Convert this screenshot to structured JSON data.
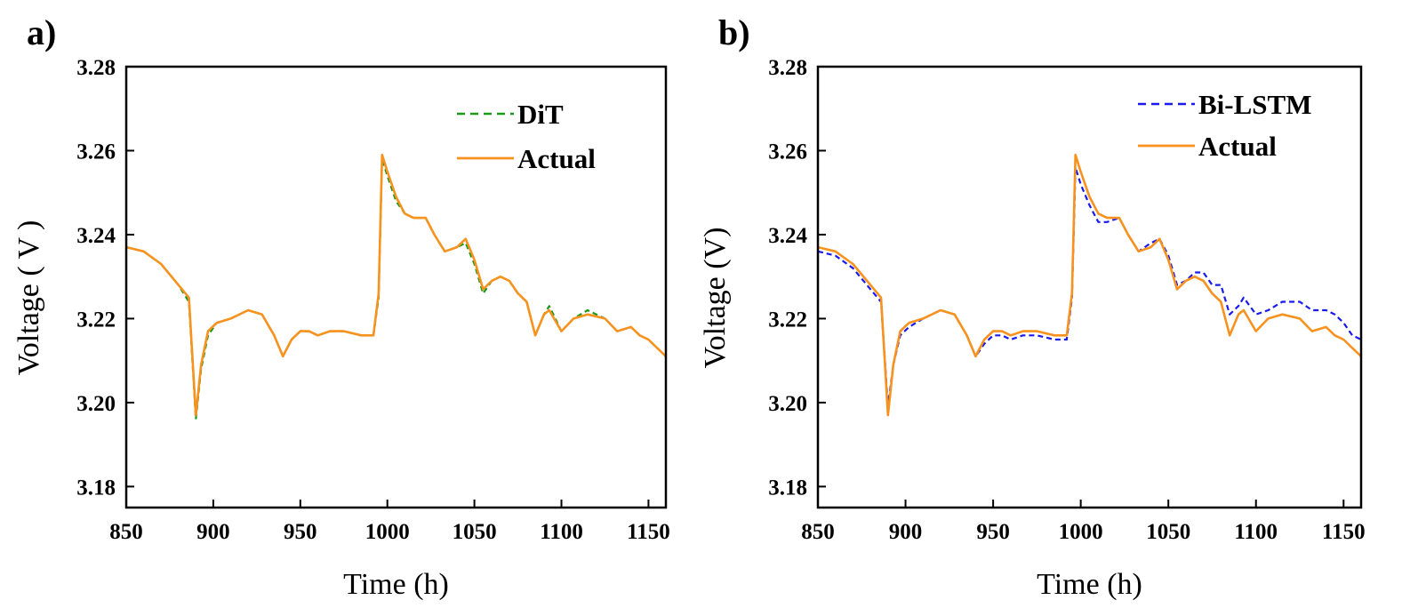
{
  "chart_data": [
    {
      "type": "line",
      "panel_label": "a)",
      "xlabel": "Time (h)",
      "ylabel": "Voltage ( V )",
      "xlim": [
        850,
        1160
      ],
      "ylim": [
        3.175,
        3.28
      ],
      "xticks": [
        "850",
        "900",
        "950",
        "1000",
        "1050",
        "1100",
        "1150"
      ],
      "yticks": [
        "3.18",
        "3.20",
        "3.22",
        "3.24",
        "3.26",
        "3.28"
      ],
      "legend_position": "top-right",
      "series": [
        {
          "name": "DiT",
          "style": "dashed",
          "color": "#1a9a1a",
          "points": [
            [
              850,
              3.237
            ],
            [
              860,
              3.236
            ],
            [
              870,
              3.233
            ],
            [
              880,
              3.228
            ],
            [
              886,
              3.224
            ],
            [
              890,
              3.196
            ],
            [
              893,
              3.208
            ],
            [
              897,
              3.216
            ],
            [
              902,
              3.219
            ],
            [
              910,
              3.22
            ],
            [
              920,
              3.222
            ],
            [
              928,
              3.221
            ],
            [
              935,
              3.216
            ],
            [
              940,
              3.211
            ],
            [
              945,
              3.215
            ],
            [
              950,
              3.217
            ],
            [
              955,
              3.217
            ],
            [
              960,
              3.216
            ],
            [
              967,
              3.217
            ],
            [
              975,
              3.217
            ],
            [
              985,
              3.216
            ],
            [
              990,
              3.216
            ],
            [
              992,
              3.216
            ],
            [
              995,
              3.225
            ],
            [
              997,
              3.258
            ],
            [
              1000,
              3.254
            ],
            [
              1005,
              3.248
            ],
            [
              1010,
              3.245
            ],
            [
              1015,
              3.244
            ],
            [
              1022,
              3.244
            ],
            [
              1027,
              3.24
            ],
            [
              1033,
              3.236
            ],
            [
              1040,
              3.237
            ],
            [
              1045,
              3.238
            ],
            [
              1050,
              3.233
            ],
            [
              1055,
              3.226
            ],
            [
              1060,
              3.229
            ],
            [
              1065,
              3.23
            ],
            [
              1070,
              3.229
            ],
            [
              1075,
              3.226
            ],
            [
              1080,
              3.224
            ],
            [
              1085,
              3.216
            ],
            [
              1090,
              3.221
            ],
            [
              1093,
              3.223
            ],
            [
              1100,
              3.217
            ],
            [
              1107,
              3.22
            ],
            [
              1115,
              3.222
            ],
            [
              1125,
              3.22
            ],
            [
              1132,
              3.217
            ],
            [
              1140,
              3.218
            ],
            [
              1145,
              3.216
            ],
            [
              1150,
              3.215
            ],
            [
              1155,
              3.213
            ],
            [
              1160,
              3.211
            ]
          ]
        },
        {
          "name": "Actual",
          "style": "solid",
          "color": "#f7921e",
          "points": [
            [
              850,
              3.237
            ],
            [
              860,
              3.236
            ],
            [
              870,
              3.233
            ],
            [
              880,
              3.228
            ],
            [
              886,
              3.225
            ],
            [
              890,
              3.197
            ],
            [
              893,
              3.209
            ],
            [
              897,
              3.217
            ],
            [
              902,
              3.219
            ],
            [
              910,
              3.22
            ],
            [
              920,
              3.222
            ],
            [
              928,
              3.221
            ],
            [
              935,
              3.216
            ],
            [
              940,
              3.211
            ],
            [
              945,
              3.215
            ],
            [
              950,
              3.217
            ],
            [
              955,
              3.217
            ],
            [
              960,
              3.216
            ],
            [
              967,
              3.217
            ],
            [
              975,
              3.217
            ],
            [
              985,
              3.216
            ],
            [
              990,
              3.216
            ],
            [
              992,
              3.216
            ],
            [
              995,
              3.226
            ],
            [
              997,
              3.259
            ],
            [
              1000,
              3.255
            ],
            [
              1005,
              3.249
            ],
            [
              1010,
              3.245
            ],
            [
              1015,
              3.244
            ],
            [
              1022,
              3.244
            ],
            [
              1027,
              3.24
            ],
            [
              1033,
              3.236
            ],
            [
              1040,
              3.237
            ],
            [
              1045,
              3.239
            ],
            [
              1050,
              3.234
            ],
            [
              1055,
              3.227
            ],
            [
              1060,
              3.229
            ],
            [
              1065,
              3.23
            ],
            [
              1070,
              3.229
            ],
            [
              1075,
              3.226
            ],
            [
              1080,
              3.224
            ],
            [
              1085,
              3.216
            ],
            [
              1090,
              3.221
            ],
            [
              1093,
              3.222
            ],
            [
              1100,
              3.217
            ],
            [
              1107,
              3.22
            ],
            [
              1115,
              3.221
            ],
            [
              1125,
              3.22
            ],
            [
              1132,
              3.217
            ],
            [
              1140,
              3.218
            ],
            [
              1145,
              3.216
            ],
            [
              1150,
              3.215
            ],
            [
              1155,
              3.213
            ],
            [
              1160,
              3.211
            ]
          ]
        }
      ]
    },
    {
      "type": "line",
      "panel_label": "b)",
      "xlabel": "Time (h)",
      "ylabel": "Voltage (V)",
      "xlim": [
        850,
        1160
      ],
      "ylim": [
        3.175,
        3.28
      ],
      "xticks": [
        "850",
        "900",
        "950",
        "1000",
        "1050",
        "1100",
        "1150"
      ],
      "yticks": [
        "3.18",
        "3.20",
        "3.22",
        "3.24",
        "3.26",
        "3.28"
      ],
      "legend_position": "top-right",
      "series": [
        {
          "name": "Bi-LSTM",
          "style": "dashed",
          "color": "#1a1aee",
          "points": [
            [
              850,
              3.236
            ],
            [
              860,
              3.235
            ],
            [
              870,
              3.232
            ],
            [
              880,
              3.227
            ],
            [
              886,
              3.224
            ],
            [
              890,
              3.199
            ],
            [
              893,
              3.209
            ],
            [
              897,
              3.216
            ],
            [
              902,
              3.218
            ],
            [
              910,
              3.22
            ],
            [
              920,
              3.222
            ],
            [
              928,
              3.221
            ],
            [
              935,
              3.216
            ],
            [
              940,
              3.211
            ],
            [
              945,
              3.214
            ],
            [
              950,
              3.216
            ],
            [
              955,
              3.216
            ],
            [
              960,
              3.215
            ],
            [
              967,
              3.216
            ],
            [
              975,
              3.216
            ],
            [
              985,
              3.215
            ],
            [
              990,
              3.215
            ],
            [
              992,
              3.215
            ],
            [
              995,
              3.225
            ],
            [
              997,
              3.256
            ],
            [
              1000,
              3.252
            ],
            [
              1005,
              3.247
            ],
            [
              1010,
              3.243
            ],
            [
              1015,
              3.243
            ],
            [
              1022,
              3.244
            ],
            [
              1027,
              3.24
            ],
            [
              1033,
              3.236
            ],
            [
              1040,
              3.238
            ],
            [
              1045,
              3.239
            ],
            [
              1050,
              3.235
            ],
            [
              1055,
              3.228
            ],
            [
              1060,
              3.229
            ],
            [
              1065,
              3.231
            ],
            [
              1070,
              3.231
            ],
            [
              1075,
              3.228
            ],
            [
              1080,
              3.228
            ],
            [
              1085,
              3.221
            ],
            [
              1090,
              3.223
            ],
            [
              1093,
              3.225
            ],
            [
              1100,
              3.221
            ],
            [
              1107,
              3.222
            ],
            [
              1115,
              3.224
            ],
            [
              1125,
              3.224
            ],
            [
              1132,
              3.222
            ],
            [
              1140,
              3.222
            ],
            [
              1145,
              3.221
            ],
            [
              1150,
              3.219
            ],
            [
              1155,
              3.216
            ],
            [
              1160,
              3.215
            ]
          ]
        },
        {
          "name": "Actual",
          "style": "solid",
          "color": "#f7921e",
          "points": [
            [
              850,
              3.237
            ],
            [
              860,
              3.236
            ],
            [
              870,
              3.233
            ],
            [
              880,
              3.228
            ],
            [
              886,
              3.225
            ],
            [
              890,
              3.197
            ],
            [
              893,
              3.209
            ],
            [
              897,
              3.217
            ],
            [
              902,
              3.219
            ],
            [
              910,
              3.22
            ],
            [
              920,
              3.222
            ],
            [
              928,
              3.221
            ],
            [
              935,
              3.216
            ],
            [
              940,
              3.211
            ],
            [
              945,
              3.215
            ],
            [
              950,
              3.217
            ],
            [
              955,
              3.217
            ],
            [
              960,
              3.216
            ],
            [
              967,
              3.217
            ],
            [
              975,
              3.217
            ],
            [
              985,
              3.216
            ],
            [
              990,
              3.216
            ],
            [
              992,
              3.216
            ],
            [
              995,
              3.226
            ],
            [
              997,
              3.259
            ],
            [
              1000,
              3.255
            ],
            [
              1005,
              3.249
            ],
            [
              1010,
              3.245
            ],
            [
              1015,
              3.244
            ],
            [
              1022,
              3.244
            ],
            [
              1027,
              3.24
            ],
            [
              1033,
              3.236
            ],
            [
              1040,
              3.237
            ],
            [
              1045,
              3.239
            ],
            [
              1050,
              3.234
            ],
            [
              1055,
              3.227
            ],
            [
              1060,
              3.229
            ],
            [
              1065,
              3.23
            ],
            [
              1070,
              3.229
            ],
            [
              1075,
              3.226
            ],
            [
              1080,
              3.224
            ],
            [
              1085,
              3.216
            ],
            [
              1090,
              3.221
            ],
            [
              1093,
              3.222
            ],
            [
              1100,
              3.217
            ],
            [
              1107,
              3.22
            ],
            [
              1115,
              3.221
            ],
            [
              1125,
              3.22
            ],
            [
              1132,
              3.217
            ],
            [
              1140,
              3.218
            ],
            [
              1145,
              3.216
            ],
            [
              1150,
              3.215
            ],
            [
              1155,
              3.213
            ],
            [
              1160,
              3.211
            ]
          ]
        }
      ]
    }
  ]
}
